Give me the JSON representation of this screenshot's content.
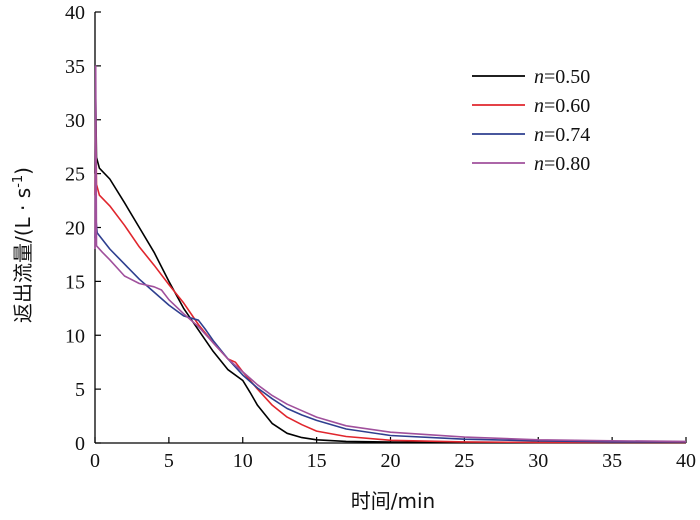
{
  "chart_data": {
    "type": "line",
    "xlabel": "时间/min",
    "ylabel_main": "返出流量/(L · s",
    "ylabel_sup": "-1",
    "ylabel_close": ")",
    "xlim": [
      0,
      40
    ],
    "ylim": [
      0,
      40
    ],
    "xticks": [
      0,
      5,
      10,
      15,
      20,
      25,
      30,
      35,
      40
    ],
    "yticks": [
      0,
      5,
      10,
      15,
      20,
      25,
      30,
      35,
      40
    ],
    "grid": false,
    "legend_position": "top-right",
    "series": [
      {
        "name_var": "n",
        "name_val": "=0.50",
        "color": "#000000",
        "x": [
          0,
          0.05,
          0.1,
          0.3,
          1,
          2,
          3,
          4,
          5,
          6,
          7,
          8,
          9,
          10,
          10.5,
          11,
          12,
          13,
          14,
          15,
          17,
          20,
          25,
          30,
          35,
          40
        ],
        "y": [
          25,
          32,
          26.5,
          25.5,
          24.5,
          22.3,
          20,
          17.7,
          15,
          12.5,
          10.5,
          8.5,
          6.8,
          5.8,
          4.7,
          3.5,
          1.8,
          0.9,
          0.5,
          0.3,
          0.15,
          0.08,
          0.05,
          0.05,
          0.05,
          0.05
        ]
      },
      {
        "name_var": "n",
        "name_val": "=0.60",
        "color": "#e0262d",
        "x": [
          0,
          0.05,
          0.1,
          0.3,
          1,
          2,
          3,
          4,
          5,
          6,
          7,
          8,
          9,
          9.5,
          10,
          11,
          12,
          13,
          14,
          15,
          17,
          20,
          25,
          30,
          35,
          40
        ],
        "y": [
          23,
          30,
          24,
          23,
          22,
          20.2,
          18.2,
          16.5,
          14.7,
          13,
          11,
          9.3,
          7.8,
          7.5,
          6.6,
          5,
          3.5,
          2.4,
          1.7,
          1.1,
          0.6,
          0.25,
          0.1,
          0.05,
          0.05,
          0.05
        ]
      },
      {
        "name_var": "n",
        "name_val": "=0.74",
        "color": "#2e3f8f",
        "x": [
          0,
          0.05,
          0.15,
          1,
          2,
          3,
          4,
          5,
          6,
          7,
          7.5,
          8,
          9,
          10,
          11,
          12,
          13,
          14,
          15,
          17,
          20,
          25,
          30,
          35,
          40
        ],
        "y": [
          19,
          21,
          19.5,
          18,
          16.6,
          15.2,
          14,
          12.8,
          11.8,
          11.4,
          10.5,
          9.5,
          7.8,
          6.3,
          5.1,
          4.1,
          3.2,
          2.6,
          2.1,
          1.3,
          0.7,
          0.35,
          0.2,
          0.1,
          0.1
        ]
      },
      {
        "name_var": "n",
        "name_val": "=0.80",
        "color": "#a0509c",
        "x": [
          0,
          0.05,
          0.1,
          0.5,
          1,
          2,
          3,
          4,
          4.5,
          5,
          6,
          7,
          8,
          9,
          10,
          11,
          12,
          13,
          14,
          15,
          17,
          20,
          25,
          30,
          35,
          40
        ],
        "y": [
          18,
          35,
          18.3,
          17.7,
          17,
          15.5,
          14.8,
          14.5,
          14.2,
          13.3,
          12,
          10.8,
          9.3,
          7.8,
          6.6,
          5.4,
          4.4,
          3.6,
          3,
          2.4,
          1.6,
          1,
          0.55,
          0.3,
          0.2,
          0.15
        ]
      }
    ]
  }
}
